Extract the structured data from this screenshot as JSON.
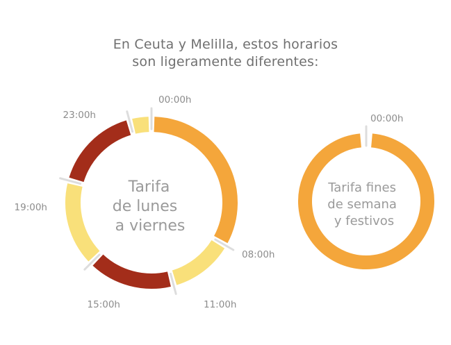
{
  "header": {
    "line1": "En Ceuta y Melilla, estos horarios",
    "line2": "son ligeramente diferentes:"
  },
  "colors": {
    "punta": "#a32d1a",
    "llano": "#f9e07a",
    "valle": "#f4a63b",
    "tick": "#dddddd",
    "text": "#707070"
  },
  "chart_data": [
    {
      "type": "pie",
      "donut": true,
      "center_label": [
        "Tarifa",
        "de lunes",
        "a viernes"
      ],
      "unit": "hours",
      "segments": [
        {
          "start": 0,
          "end": 8,
          "color": "#f4a63b",
          "start_label": "00:00h",
          "end_label": "08:00h"
        },
        {
          "start": 8,
          "end": 11,
          "color": "#f9e07a",
          "start_label": "08:00h",
          "end_label": "11:00h"
        },
        {
          "start": 11,
          "end": 15,
          "color": "#a32d1a",
          "start_label": "11:00h",
          "end_label": "15:00h"
        },
        {
          "start": 15,
          "end": 19,
          "color": "#f9e07a",
          "start_label": "15:00h",
          "end_label": "19:00h"
        },
        {
          "start": 19,
          "end": 23,
          "color": "#a32d1a",
          "start_label": "19:00h",
          "end_label": "23:00h"
        },
        {
          "start": 23,
          "end": 24,
          "color": "#f9e07a",
          "start_label": "23:00h",
          "end_label": "00:00h"
        }
      ],
      "ticks": [
        {
          "hour": 0,
          "label": "00:00h"
        },
        {
          "hour": 8,
          "label": "08:00h"
        },
        {
          "hour": 11,
          "label": "11:00h"
        },
        {
          "hour": 15,
          "label": "15:00h"
        },
        {
          "hour": 19,
          "label": "19:00h"
        },
        {
          "hour": 23,
          "label": "23:00h"
        }
      ]
    },
    {
      "type": "pie",
      "donut": true,
      "center_label": [
        "Tarifa fines",
        "de semana",
        "y festivos"
      ],
      "unit": "hours",
      "segments": [
        {
          "start": 0,
          "end": 24,
          "color": "#f4a63b",
          "start_label": "00:00h",
          "end_label": "00:00h"
        }
      ],
      "ticks": [
        {
          "hour": 0,
          "label": "00:00h"
        }
      ]
    }
  ]
}
